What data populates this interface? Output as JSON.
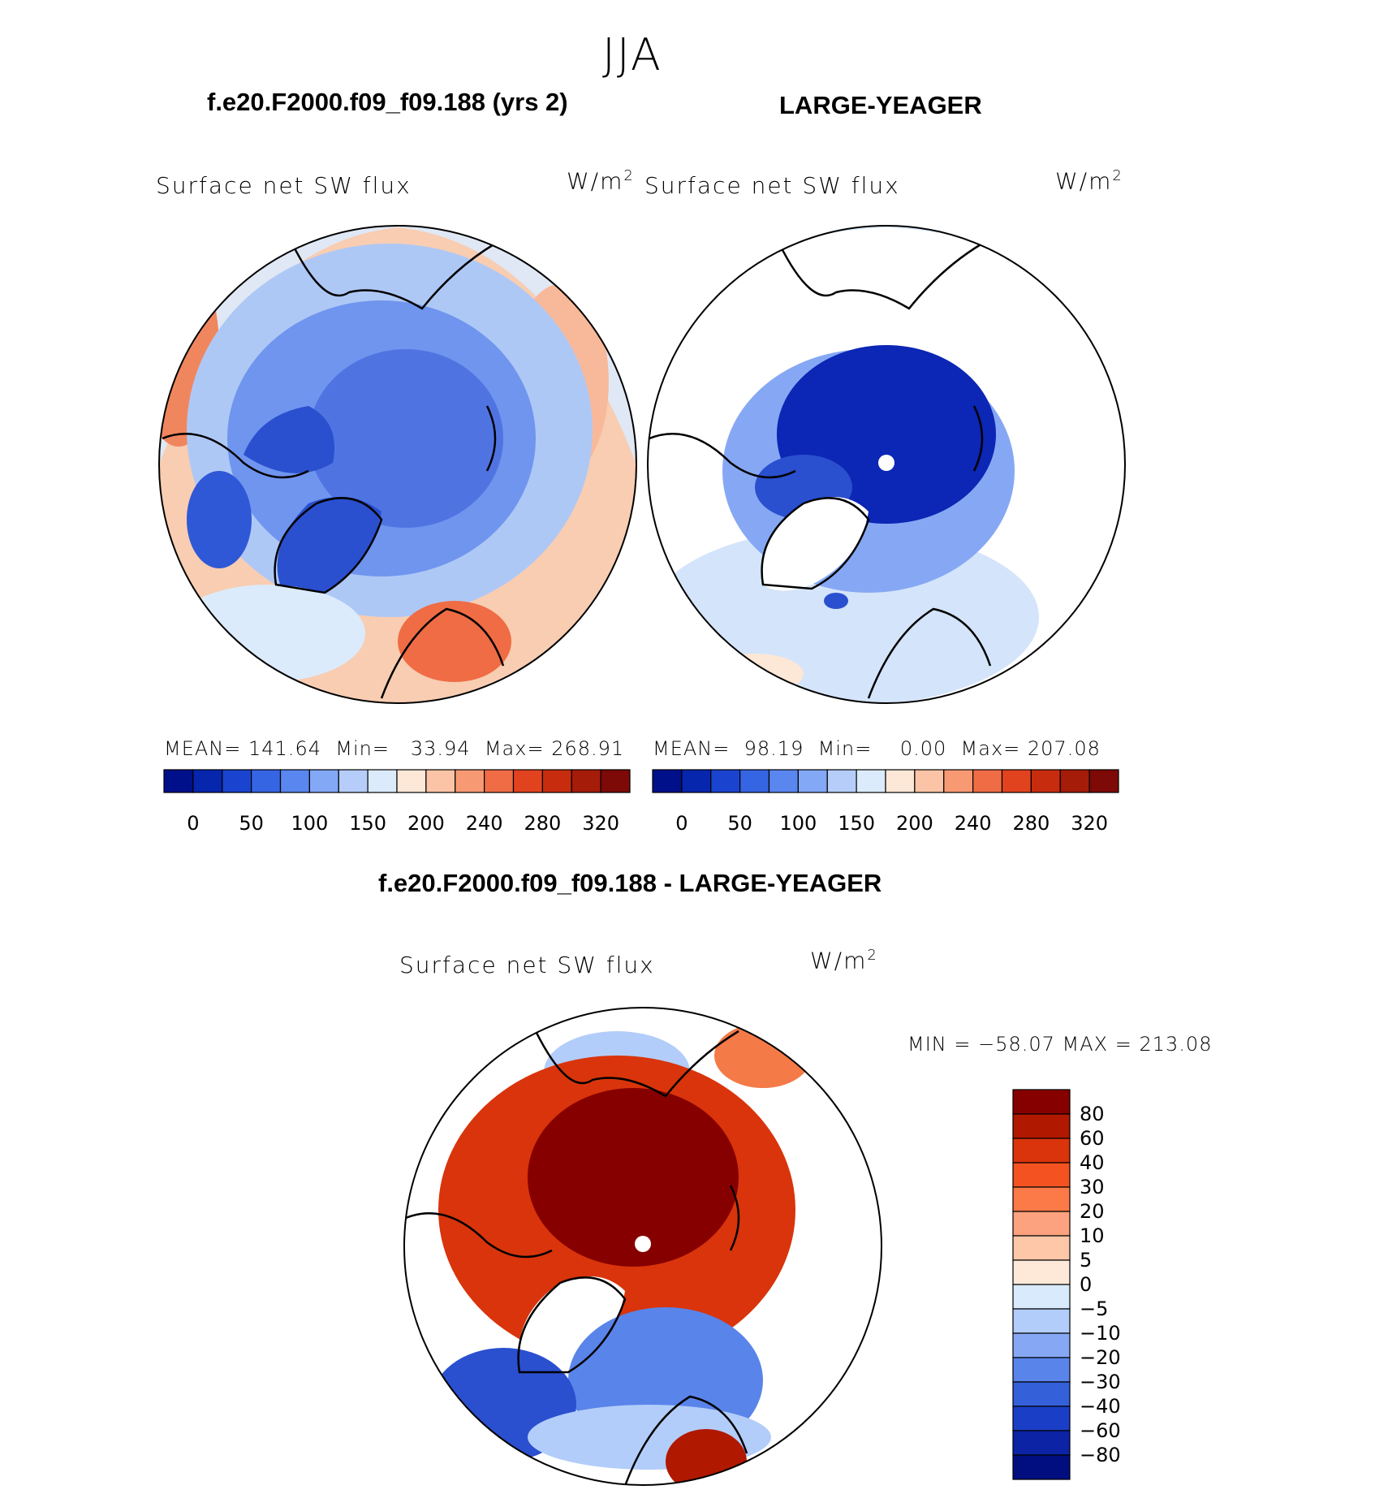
{
  "season": "JJA",
  "panels": [
    {
      "case_title": "f.e20.F2000.f09_f09.188 (yrs 2)",
      "variable": "Surface net SW flux",
      "units": "W/m",
      "units_sup": "2",
      "mean_label": "MEAN=",
      "mean": "141.64",
      "min_label": "Min=",
      "min": "33.94",
      "max_label": "Max=",
      "max": "268.91"
    },
    {
      "case_title": "LARGE-YEAGER",
      "variable": "Surface net SW flux",
      "units": "W/m",
      "units_sup": "2",
      "mean_label": "MEAN=",
      "mean": "98.19",
      "min_label": "Min=",
      "min": "0.00",
      "max_label": "Max=",
      "max": "207.08"
    }
  ],
  "diff": {
    "title": "f.e20.F2000.f09_f09.188 - LARGE-YEAGER",
    "variable": "Surface net SW flux",
    "units": "W/m",
    "units_sup": "2",
    "minmax": "MIN = −58.07 MAX = 213.08"
  },
  "chart_data": [
    {
      "type": "heatmap",
      "title": "f.e20.F2000.f09_f09.188 (yrs 2)",
      "projection": "north polar stereographic",
      "colorbar": {
        "orientation": "horizontal",
        "ticks": [
          "0",
          "50",
          "100",
          "150",
          "200",
          "240",
          "280",
          "320"
        ],
        "colors": [
          "#00108a",
          "#0526ad",
          "#1a44cf",
          "#3565e2",
          "#5a86ef",
          "#82a8f6",
          "#b5cdf8",
          "#dcebfb",
          "#fde7d6",
          "#fbc4a6",
          "#f79a73",
          "#ef6c45",
          "#e2431f",
          "#c82c0e",
          "#a51c08",
          "#7d0a06"
        ]
      },
      "stats": {
        "mean": 141.64,
        "min": 33.94,
        "max": 268.91
      }
    },
    {
      "type": "heatmap",
      "title": "LARGE-YEAGER",
      "projection": "north polar stereographic",
      "colorbar": {
        "orientation": "horizontal",
        "ticks": [
          "0",
          "50",
          "100",
          "150",
          "200",
          "240",
          "280",
          "320"
        ],
        "colors": [
          "#00108a",
          "#0526ad",
          "#1a44cf",
          "#3565e2",
          "#5a86ef",
          "#82a8f6",
          "#b5cdf8",
          "#dcebfb",
          "#fde7d6",
          "#fbc4a6",
          "#f79a73",
          "#ef6c45",
          "#e2431f",
          "#c82c0e",
          "#a51c08",
          "#7d0a06"
        ]
      },
      "stats": {
        "mean": 98.19,
        "min": 0.0,
        "max": 207.08
      }
    },
    {
      "type": "heatmap",
      "title": "f.e20.F2000.f09_f09.188 - LARGE-YEAGER",
      "projection": "north polar stereographic",
      "colorbar": {
        "orientation": "vertical",
        "ticks": [
          "80",
          "60",
          "40",
          "30",
          "20",
          "10",
          "5",
          "0",
          "−5",
          "−10",
          "−20",
          "−30",
          "−40",
          "−60",
          "−80"
        ],
        "colors": [
          "#870000",
          "#b01800",
          "#d9340b",
          "#f45220",
          "#fb7a48",
          "#fca27e",
          "#fdc7a8",
          "#fee9d8",
          "#d9eafc",
          "#b3cdfa",
          "#86a8f4",
          "#5984ea",
          "#3460da",
          "#1a3ec6",
          "#0b23a4",
          "#000e80"
        ]
      },
      "stats": {
        "min": -58.07,
        "max": 213.08
      }
    }
  ]
}
